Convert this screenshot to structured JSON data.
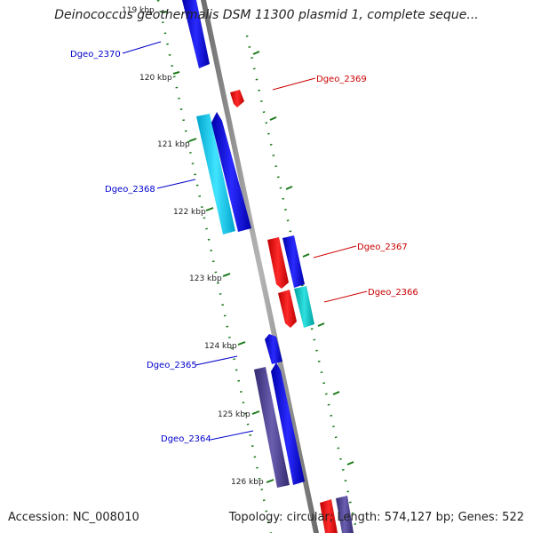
{
  "title": "Deinococcus geothermalis DSM 11300 plasmid 1, complete seque...",
  "footer": {
    "accession": "Accession: NC_008010",
    "stats": "Topology: circular; Length: 574,127 bp; Genes: 522"
  },
  "colors": {
    "backbone": "#8a8a8a",
    "tick": "#1a7a1a",
    "forward_label": "#0000cc",
    "reverse_label": "#cc0000",
    "blue": "#0000ee",
    "red": "#ee0000",
    "cyan_light": "#00c8e8",
    "teal": "#00c4c4",
    "slate": "#4a3f8c"
  },
  "scale": {
    "ticks": [
      "119 kbp",
      "120 kbp",
      "121 kbp",
      "122 kbp",
      "123 kbp",
      "124 kbp",
      "125 kbp",
      "126 kbp"
    ]
  },
  "genes": [
    {
      "name": "Dgeo_2370",
      "strand": "forward",
      "color": "blue"
    },
    {
      "name": "Dgeo_2369",
      "strand": "reverse",
      "color": "red"
    },
    {
      "name": "Dgeo_2368",
      "strand": "forward",
      "color": "blue"
    },
    {
      "name": "Dgeo_2367",
      "strand": "reverse",
      "color": "red"
    },
    {
      "name": "Dgeo_2366",
      "strand": "reverse",
      "color": "red"
    },
    {
      "name": "Dgeo_2365",
      "strand": "forward",
      "color": "blue"
    },
    {
      "name": "Dgeo_2364",
      "strand": "forward",
      "color": "blue"
    }
  ]
}
